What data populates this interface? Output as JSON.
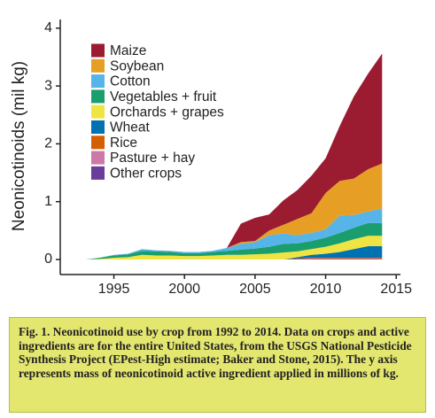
{
  "chart_data": {
    "type": "stacked_area",
    "y_label": "Neonicotinoids (mil kg)",
    "x": [
      1992,
      1993,
      1994,
      1995,
      1996,
      1997,
      1998,
      1999,
      2000,
      2001,
      2002,
      2003,
      2004,
      2005,
      2006,
      2007,
      2008,
      2009,
      2010,
      2011,
      2012,
      2013,
      2014
    ],
    "xlim": [
      1991.2,
      2015.3
    ],
    "xticks": [
      1995,
      2000,
      2005,
      2010,
      2015
    ],
    "ylim": [
      -0.26,
      4.15
    ],
    "yticks": [
      0,
      1,
      2,
      3,
      4
    ],
    "series": [
      {
        "name": "Maize",
        "color": "#9b1b30",
        "values": [
          0,
          0,
          0,
          0,
          0,
          0,
          0,
          0,
          0,
          0,
          0,
          0,
          0.32,
          0.4,
          0.28,
          0.42,
          0.5,
          0.65,
          0.6,
          0.95,
          1.42,
          1.65,
          1.9
        ]
      },
      {
        "name": "Soybean",
        "color": "#e69f24",
        "values": [
          0,
          0,
          0,
          0,
          0,
          0,
          0,
          0,
          0,
          0,
          0,
          0,
          0.03,
          0.02,
          0.08,
          0.15,
          0.28,
          0.34,
          0.63,
          0.6,
          0.63,
          0.73,
          0.78
        ]
      },
      {
        "name": "Cotton",
        "color": "#56b4e9",
        "values": [
          0,
          0,
          0,
          0.01,
          0.01,
          0.03,
          0.02,
          0.02,
          0.02,
          0.02,
          0.02,
          0.05,
          0.1,
          0.11,
          0.2,
          0.18,
          0.14,
          0.14,
          0.14,
          0.3,
          0.22,
          0.2,
          0.25
        ]
      },
      {
        "name": "Vegetables + fruit",
        "color": "#1a9e6e",
        "values": [
          0,
          0,
          0.02,
          0.04,
          0.05,
          0.07,
          0.07,
          0.06,
          0.05,
          0.05,
          0.06,
          0.07,
          0.09,
          0.1,
          0.12,
          0.15,
          0.14,
          0.14,
          0.16,
          0.18,
          0.2,
          0.22,
          0.22
        ]
      },
      {
        "name": "Orchards + grapes",
        "color": "#f0e442",
        "values": [
          0,
          0,
          0.01,
          0.03,
          0.04,
          0.08,
          0.07,
          0.07,
          0.06,
          0.06,
          0.07,
          0.08,
          0.08,
          0.09,
          0.1,
          0.12,
          0.1,
          0.1,
          0.12,
          0.15,
          0.17,
          0.18,
          0.18
        ]
      },
      {
        "name": "Wheat",
        "color": "#0072b2",
        "values": [
          0,
          0,
          0,
          0,
          0,
          0,
          0,
          0,
          0,
          0,
          0,
          0,
          0,
          0,
          0,
          0,
          0.02,
          0.05,
          0.07,
          0.1,
          0.15,
          0.2,
          0.2
        ]
      },
      {
        "name": "Rice",
        "color": "#d55e00",
        "values": [
          0,
          0,
          0,
          0,
          0,
          0,
          0,
          0,
          0,
          0,
          0,
          0,
          0,
          0,
          0,
          0,
          0.01,
          0.01,
          0.01,
          0.01,
          0.01,
          0.01,
          0.01
        ]
      },
      {
        "name": "Pasture + hay",
        "color": "#cc79a7",
        "values": [
          0,
          0,
          0,
          0,
          0,
          0,
          0,
          0,
          0,
          0,
          0,
          0,
          0,
          0,
          0,
          0,
          0,
          0.01,
          0.01,
          0.01,
          0.01,
          0.01,
          0.01
        ]
      },
      {
        "name": "Other crops",
        "color": "#6a3d9a",
        "values": [
          0,
          0,
          0,
          0,
          0,
          0,
          0,
          0,
          0,
          0,
          0,
          0,
          0,
          0,
          0,
          0,
          0.01,
          0.01,
          0.01,
          0.01,
          0.01,
          0.01,
          0.01
        ]
      }
    ],
    "caption": "Fig. 1. Neonicotinoid use by crop from 1992 to 2014. Data on crops and active ingredients are for the entire United States, from the USGS National Pesticide Synthesis Project (EPest-High estimate; Baker and Stone, 2015). The y axis represents mass of neonicotinoid active ingredient applied in millions of kg."
  }
}
